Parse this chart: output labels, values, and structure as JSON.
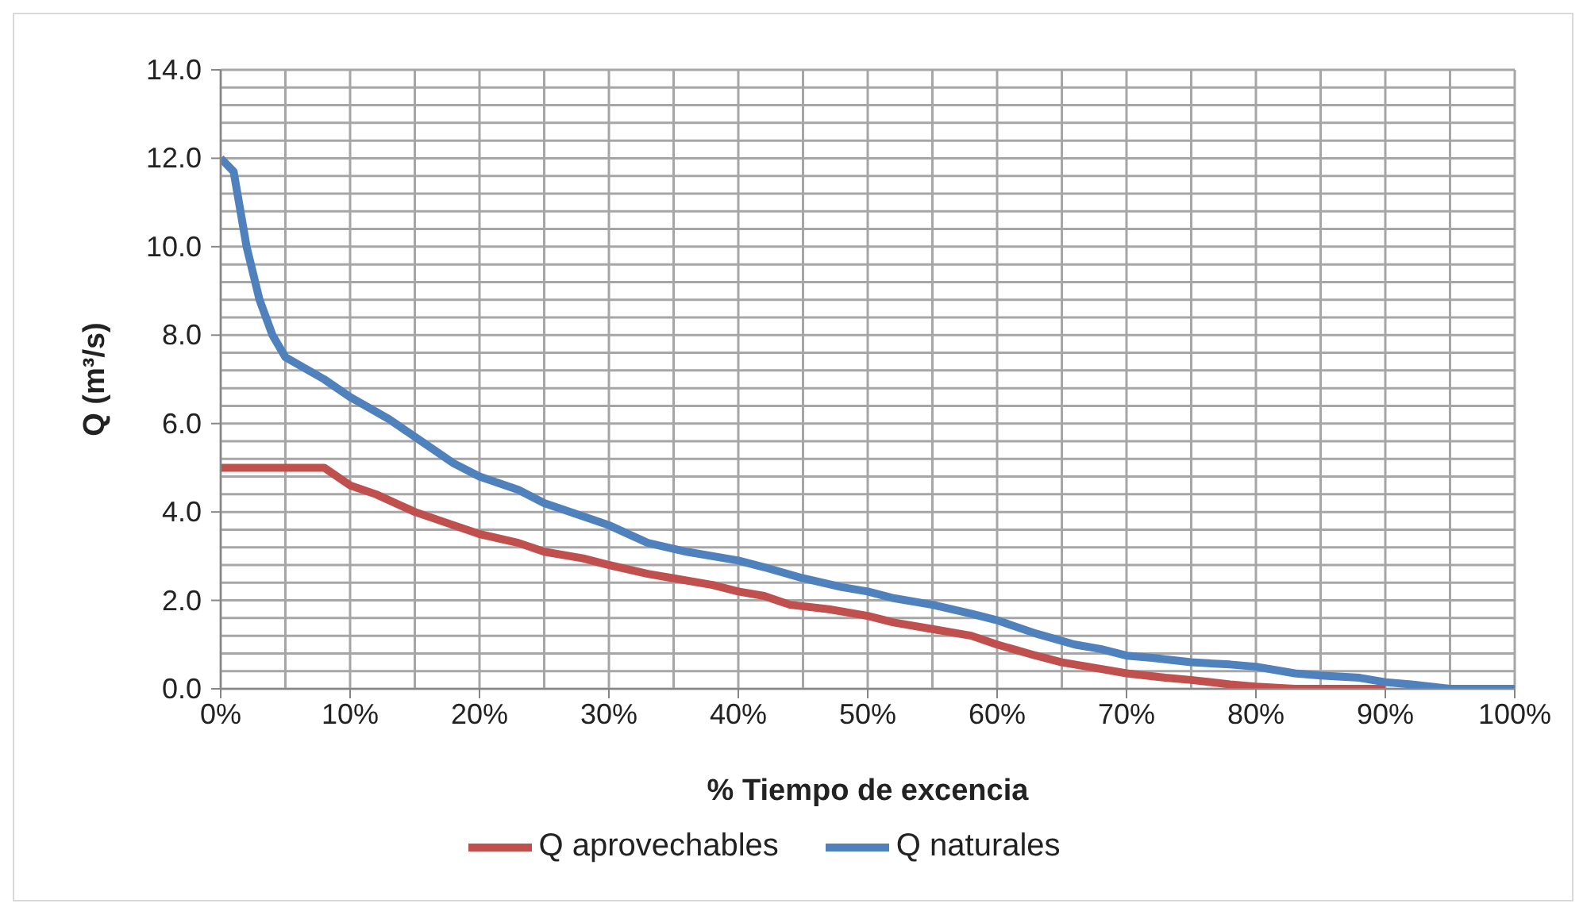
{
  "chart_data": {
    "type": "line",
    "xlabel": "% Tiempo de excencia",
    "ylabel": "Q (m³/s)",
    "series": [
      {
        "name": "Q aprovechables",
        "color": "#c0504d",
        "x": [
          0,
          8,
          10,
          12,
          15,
          18,
          20,
          23,
          25,
          28,
          30,
          33,
          35,
          38,
          40,
          42,
          44,
          47,
          50,
          52,
          55,
          58,
          60,
          63,
          65,
          68,
          70,
          73,
          75,
          78,
          80,
          83,
          90
        ],
        "values": [
          5.0,
          5.0,
          4.6,
          4.4,
          4.0,
          3.7,
          3.5,
          3.3,
          3.1,
          2.95,
          2.8,
          2.6,
          2.5,
          2.35,
          2.2,
          2.1,
          1.9,
          1.8,
          1.65,
          1.5,
          1.35,
          1.2,
          1.0,
          0.75,
          0.6,
          0.45,
          0.35,
          0.25,
          0.2,
          0.1,
          0.05,
          0.0,
          0.0
        ]
      },
      {
        "name": "Q naturales",
        "color": "#4f81bd",
        "x": [
          0,
          1,
          2,
          3,
          4,
          5,
          8,
          10,
          13,
          15,
          18,
          20,
          23,
          25,
          30,
          33,
          36,
          40,
          42,
          45,
          48,
          50,
          52,
          55,
          58,
          60,
          63,
          66,
          68,
          70,
          72,
          75,
          78,
          80,
          83,
          85,
          88,
          90,
          92,
          95,
          100
        ],
        "values": [
          12.0,
          11.7,
          10.0,
          8.8,
          8.0,
          7.5,
          7.0,
          6.6,
          6.1,
          5.7,
          5.1,
          4.8,
          4.5,
          4.2,
          3.7,
          3.3,
          3.1,
          2.9,
          2.75,
          2.5,
          2.3,
          2.2,
          2.05,
          1.9,
          1.7,
          1.55,
          1.25,
          1.0,
          0.9,
          0.75,
          0.7,
          0.6,
          0.55,
          0.5,
          0.35,
          0.3,
          0.25,
          0.15,
          0.1,
          0.0,
          0.0
        ]
      }
    ],
    "xlim": [
      0,
      100
    ],
    "xticks": [
      {
        "value": 0,
        "label": "0%"
      },
      {
        "value": 5,
        "label": null
      },
      {
        "value": 10,
        "label": "10%"
      },
      {
        "value": 15,
        "label": null
      },
      {
        "value": 20,
        "label": "20%"
      },
      {
        "value": 25,
        "label": null
      },
      {
        "value": 30,
        "label": "30%"
      },
      {
        "value": 35,
        "label": null
      },
      {
        "value": 40,
        "label": "40%"
      },
      {
        "value": 45,
        "label": null
      },
      {
        "value": 50,
        "label": "50%"
      },
      {
        "value": 55,
        "label": null
      },
      {
        "value": 60,
        "label": "60%"
      },
      {
        "value": 65,
        "label": null
      },
      {
        "value": 70,
        "label": "70%"
      },
      {
        "value": 75,
        "label": null
      },
      {
        "value": 80,
        "label": "80%"
      },
      {
        "value": 85,
        "label": null
      },
      {
        "value": 90,
        "label": "90%"
      },
      {
        "value": 95,
        "label": null
      },
      {
        "value": 100,
        "label": "100%"
      }
    ],
    "ylim": [
      0,
      14
    ],
    "yticks": [
      {
        "value": 0,
        "label": "0.0"
      },
      {
        "value": 0.4,
        "label": null
      },
      {
        "value": 0.8,
        "label": null
      },
      {
        "value": 1.2,
        "label": null
      },
      {
        "value": 1.6,
        "label": null
      },
      {
        "value": 2,
        "label": "2.0"
      },
      {
        "value": 2.4,
        "label": null
      },
      {
        "value": 2.8,
        "label": null
      },
      {
        "value": 3.2,
        "label": null
      },
      {
        "value": 3.6,
        "label": null
      },
      {
        "value": 4,
        "label": "4.0"
      },
      {
        "value": 4.4,
        "label": null
      },
      {
        "value": 4.8,
        "label": null
      },
      {
        "value": 5.2,
        "label": null
      },
      {
        "value": 5.6,
        "label": null
      },
      {
        "value": 6,
        "label": "6.0"
      },
      {
        "value": 6.4,
        "label": null
      },
      {
        "value": 6.8,
        "label": null
      },
      {
        "value": 7.2,
        "label": null
      },
      {
        "value": 7.6,
        "label": null
      },
      {
        "value": 8,
        "label": "8.0"
      },
      {
        "value": 8.4,
        "label": null
      },
      {
        "value": 8.8,
        "label": null
      },
      {
        "value": 9.2,
        "label": null
      },
      {
        "value": 9.6,
        "label": null
      },
      {
        "value": 10,
        "label": "10.0"
      },
      {
        "value": 10.4,
        "label": null
      },
      {
        "value": 10.8,
        "label": null
      },
      {
        "value": 11.2,
        "label": null
      },
      {
        "value": 11.6,
        "label": null
      },
      {
        "value": 12,
        "label": "12.0"
      },
      {
        "value": 12.4,
        "label": null
      },
      {
        "value": 12.8,
        "label": null
      },
      {
        "value": 13.2,
        "label": null
      },
      {
        "value": 13.6,
        "label": null
      },
      {
        "value": 14,
        "label": "14.0"
      }
    ],
    "grid": true,
    "legend": "bottom",
    "marker": "none",
    "line_style": "solid"
  }
}
